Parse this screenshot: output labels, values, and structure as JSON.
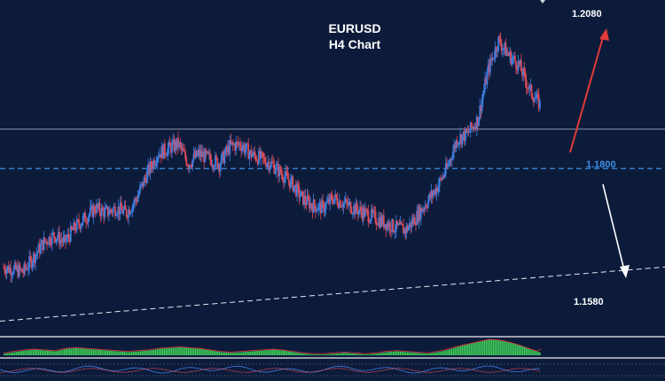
{
  "chart_data": {
    "type": "candlestick",
    "title": "EURUSD",
    "subtitle": "H4 Chart",
    "levels": [
      {
        "label": "1.2080",
        "value": 1.208,
        "color": "#ffffff"
      },
      {
        "label": "1.1800",
        "value": 1.18,
        "color": "#3d8fe6",
        "style": "dashed"
      },
      {
        "label": "1.1580",
        "value": 1.158,
        "color": "#ffffff"
      }
    ],
    "resistance_line": 1.188,
    "trend_line": {
      "start": 1.149,
      "end": 1.16,
      "style": "dashed"
    },
    "price_range": [
      1.148,
      1.211
    ],
    "close_path": [
      1.16,
      1.1595,
      1.159,
      1.162,
      1.165,
      1.1665,
      1.165,
      1.168,
      1.17,
      1.172,
      1.171,
      1.172,
      1.171,
      1.174,
      1.179,
      1.183,
      1.184,
      1.185,
      1.181,
      1.183,
      1.182,
      1.181,
      1.1845,
      1.185,
      1.183,
      1.182,
      1.181,
      1.179,
      1.177,
      1.174,
      1.1725,
      1.172,
      1.174,
      1.173,
      1.172,
      1.171,
      1.17,
      1.169,
      1.168,
      1.1675,
      1.17,
      1.173,
      1.176,
      1.18,
      1.186,
      1.187,
      1.19,
      1.2,
      1.206,
      1.203,
      1.201,
      1.196,
      1.193
    ],
    "annotations": [
      {
        "type": "arrow",
        "direction": "up",
        "color": "#e23a3a"
      },
      {
        "type": "arrow",
        "direction": "down",
        "color": "#ffffff"
      }
    ],
    "oscillator": {
      "type": "histogram",
      "color": "#3fcf5a",
      "values": [
        0.1,
        0.2,
        0.3,
        0.35,
        0.3,
        0.25,
        0.4,
        0.45,
        0.4,
        0.35,
        0.3,
        0.25,
        0.2,
        0.25,
        0.3,
        0.4,
        0.45,
        0.5,
        0.45,
        0.4,
        0.3,
        0.2,
        0.15,
        0.2,
        0.25,
        0.3,
        0.35,
        0.3,
        0.2,
        0.1,
        0.05,
        0.05,
        0.1,
        0.15,
        0.1,
        0.05,
        0.1,
        0.2,
        0.25,
        0.2,
        0.15,
        0.1,
        0.2,
        0.35,
        0.55,
        0.7,
        0.85,
        1.0,
        0.95,
        0.8,
        0.6,
        0.35,
        0.15
      ]
    },
    "grid": false,
    "colors": {
      "background": "#0d1b3a",
      "bull": "#3d7fe0",
      "bear": "#d94a57"
    }
  }
}
